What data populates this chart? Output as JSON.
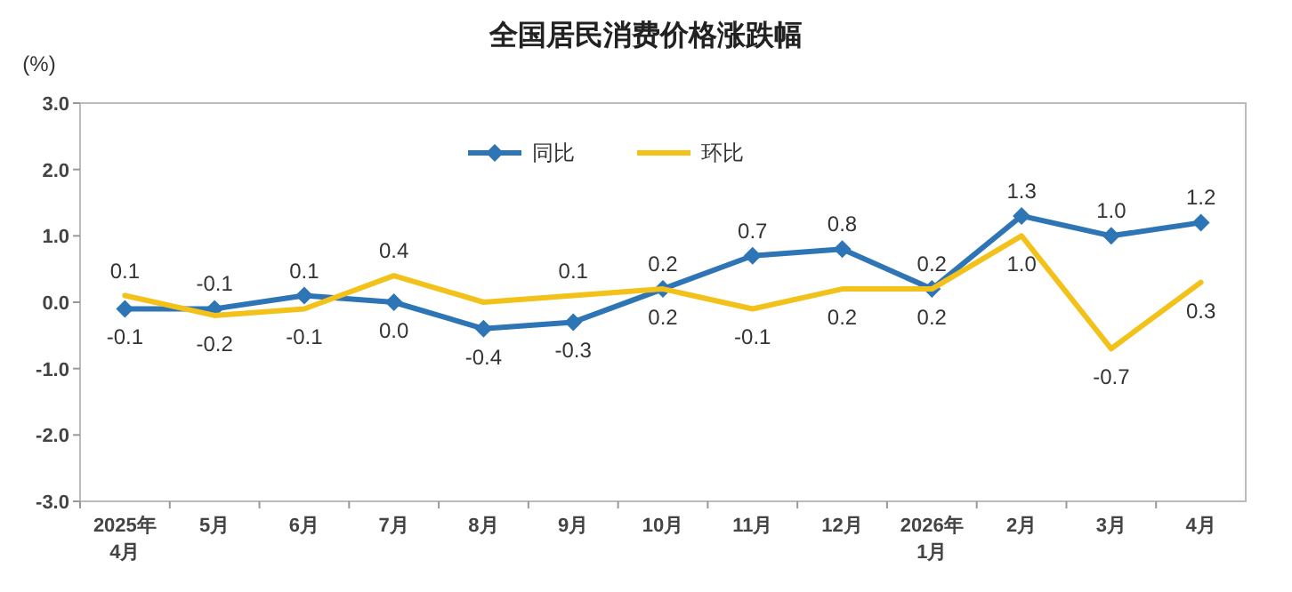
{
  "chart_data": {
    "type": "line",
    "title": "全国居民消费价格涨跌幅",
    "ylabel": "(%)",
    "categories": [
      "2025年\n4月",
      "5月",
      "6月",
      "7月",
      "8月",
      "9月",
      "10月",
      "11月",
      "12月",
      "2026年\n1月",
      "2月",
      "3月",
      "4月"
    ],
    "series": [
      {
        "name": "同比",
        "color": "#2e75b6",
        "marker": "diamond",
        "values": [
          -0.1,
          -0.1,
          0.1,
          0.0,
          -0.4,
          -0.3,
          0.2,
          0.7,
          0.8,
          0.2,
          1.3,
          1.0,
          1.2
        ],
        "value_labels": [
          "-0.1",
          "-0.1",
          "0.1",
          "0.0",
          "-0.4",
          "-0.3",
          "0.2",
          "0.7",
          "0.8",
          "0.2",
          "1.3",
          "1.0",
          "1.2"
        ]
      },
      {
        "name": "环比",
        "color": "#f2c21b",
        "marker": "none",
        "values": [
          0.1,
          -0.2,
          -0.1,
          0.4,
          0.0,
          0.1,
          0.2,
          -0.1,
          0.2,
          0.2,
          1.0,
          -0.7,
          0.3
        ],
        "value_labels": [
          "0.1",
          "-0.2",
          "-0.1",
          "0.4",
          null,
          "0.1",
          "0.2",
          "-0.1",
          "0.2",
          "0.2",
          "1.0",
          "-0.7",
          "0.3"
        ]
      }
    ],
    "ylim": [
      -3.0,
      3.0
    ],
    "yticks": [
      {
        "value": -3,
        "label": "-3.0"
      },
      {
        "value": -2,
        "label": "-2.0"
      },
      {
        "value": -1,
        "label": "-1.0"
      },
      {
        "value": 0,
        "label": "0.0"
      },
      {
        "value": 1,
        "label": "1.0"
      },
      {
        "value": 2,
        "label": "2.0"
      },
      {
        "value": 3,
        "label": "3.0"
      }
    ],
    "legend": "top",
    "grid": false,
    "line_style": "solid"
  }
}
